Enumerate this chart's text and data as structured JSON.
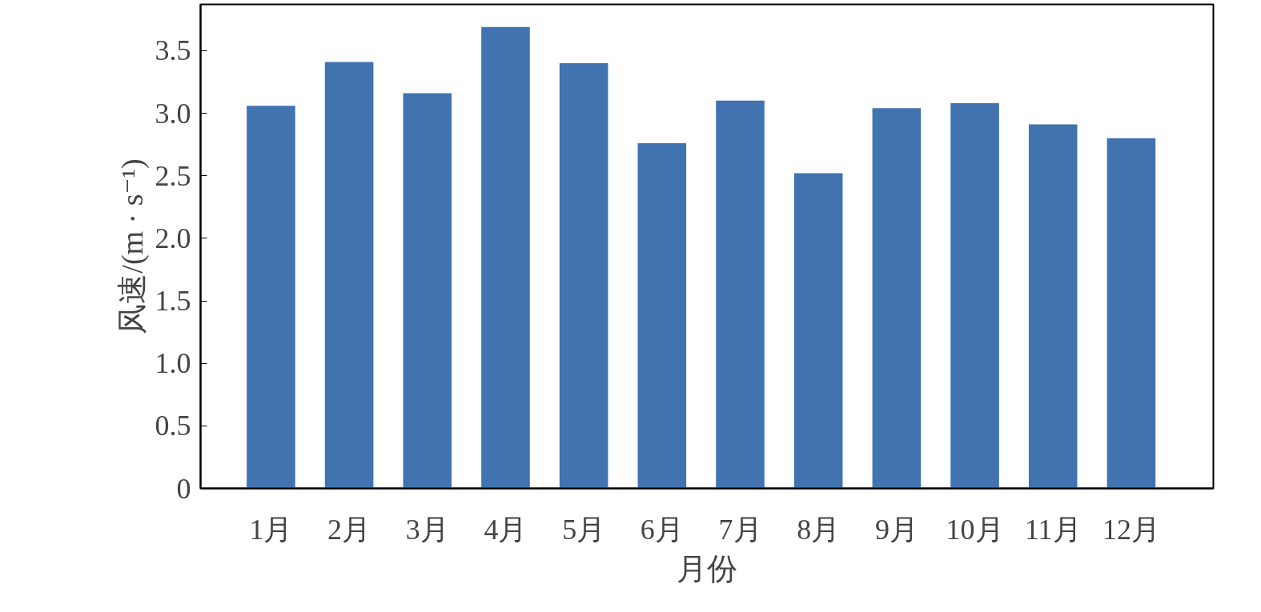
{
  "chart_data": {
    "type": "bar",
    "xlabel": "月份",
    "ylabel": "风速/(m · s⁻¹)",
    "categories": [
      "1月",
      "2月",
      "3月",
      "4月",
      "5月",
      "6月",
      "7月",
      "8月",
      "9月",
      "10月",
      "11月",
      "12月"
    ],
    "values": [
      3.06,
      3.41,
      3.16,
      3.69,
      3.4,
      2.76,
      3.1,
      2.52,
      3.04,
      3.08,
      2.91,
      2.8
    ],
    "color": "#4073b0",
    "ylim": [
      0,
      3.87
    ],
    "yticks": [
      {
        "value": 0,
        "label": "0"
      },
      {
        "value": 0.5,
        "label": "0.5"
      },
      {
        "value": 1,
        "label": "1.0"
      },
      {
        "value": 1.5,
        "label": "1.5"
      },
      {
        "value": 2,
        "label": "2.0"
      },
      {
        "value": 2.5,
        "label": "2.5"
      },
      {
        "value": 3,
        "label": "3.0"
      },
      {
        "value": 3.5,
        "label": "3.5"
      }
    ],
    "grid": false
  }
}
